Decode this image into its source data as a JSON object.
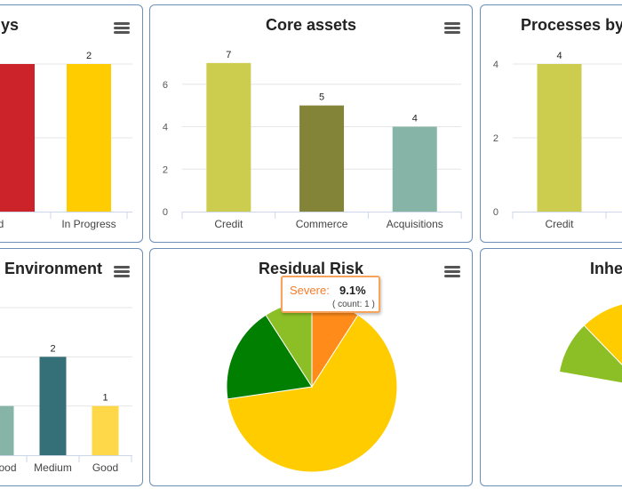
{
  "cards": {
    "c1": {
      "title": "ys"
    },
    "c2": {
      "title": "Core assets"
    },
    "c3": {
      "title": "Processes by"
    },
    "c4": {
      "title": "Environment"
    },
    "c5": {
      "title": "Residual Risk"
    },
    "c6": {
      "title": "Inhe"
    }
  },
  "tooltip": {
    "name": "Severe:",
    "value": "9.1%",
    "count": "( count: 1 )"
  },
  "colors": {
    "red": "#cc2229",
    "gold": "#ffcc00",
    "olive": "#cccc4f",
    "darkolive": "#848439",
    "teal": "#86b5a8",
    "darkteal": "#357079",
    "lightgold": "#ffd84a",
    "green": "#007f00",
    "lightgreen": "#8cbf26",
    "orange": "#ff8c1a",
    "border": "#6d8fb5"
  },
  "chart_data": [
    {
      "type": "bar",
      "title": "ys",
      "categories": [
        "rted",
        "In Progress"
      ],
      "values": [
        2,
        2
      ],
      "ylim": [
        0,
        2
      ],
      "yticks": [],
      "labels": [
        null,
        "2"
      ]
    },
    {
      "type": "bar",
      "title": "Core assets",
      "categories": [
        "Credit",
        "Commerce",
        "Acquisitions"
      ],
      "values": [
        7,
        5,
        4
      ],
      "ylim": [
        0,
        8
      ],
      "yticks": [
        0,
        2,
        4,
        6
      ]
    },
    {
      "type": "bar",
      "title": "Processes by",
      "categories": [
        "Credit"
      ],
      "values": [
        4
      ],
      "ylim": [
        0,
        4
      ],
      "yticks": [
        0,
        2,
        4
      ]
    },
    {
      "type": "bar",
      "title": "Environment",
      "categories": [
        "ood",
        "Medium",
        "Good"
      ],
      "values": [
        1,
        2,
        1
      ],
      "ylim": [
        0,
        3
      ],
      "yticks": [],
      "labels": [
        null,
        "2",
        "1"
      ]
    },
    {
      "type": "pie",
      "title": "Residual Risk",
      "slices": [
        {
          "name": "Severe",
          "percent": 9.1,
          "count": 1
        },
        {
          "name": "",
          "percent": 63.6
        },
        {
          "name": "",
          "percent": 18.2
        },
        {
          "name": "",
          "percent": 9.1
        }
      ]
    },
    {
      "type": "pie",
      "title": "Inhe",
      "slices": [
        {
          "name": "",
          "percent": 10
        },
        {
          "name": "",
          "percent": 60
        }
      ]
    }
  ]
}
